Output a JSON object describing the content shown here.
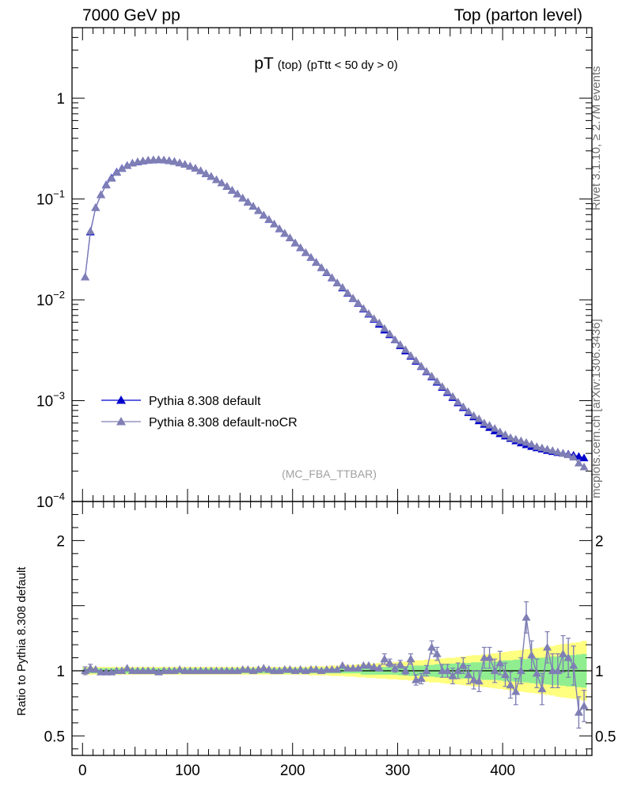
{
  "header": {
    "left": "7000 GeV pp",
    "right": "Top (parton level)"
  },
  "side_labels": {
    "top": "Rivet 3.1.10, ≥ 2.7M events",
    "bottom": "mcplots.cern.ch [arXiv:1306.3436]"
  },
  "colors": {
    "series_default": "#0000cc",
    "series_nocr": "#7f7fb5",
    "band_inner": "#90ee90",
    "band_outer": "#ffff80"
  },
  "chart_data": [
    {
      "type": "line",
      "title": "pT",
      "title_suffix": "(top)",
      "subtitle": "(pTtt < 50 dy > 0)",
      "watermark": "(MC_FBA_TTBAR)",
      "yscale": "log",
      "ylim": [
        0.0001,
        5
      ],
      "xlim": [
        -10,
        485
      ],
      "y_ticks": [
        {
          "value": 1,
          "label": "1",
          "exp": ""
        },
        {
          "value": 0.1,
          "label": "10",
          "exp": "−1"
        },
        {
          "value": 0.01,
          "label": "10",
          "exp": "−2"
        },
        {
          "value": 0.001,
          "label": "10",
          "exp": "−3"
        },
        {
          "value": 0.0001,
          "label": "10",
          "exp": "−4"
        }
      ],
      "legend": [
        {
          "name": "Pythia 8.308 default"
        },
        {
          "name": "Pythia 8.308 default-noCR"
        }
      ],
      "legend_position": "lower-left",
      "x": [
        2.5,
        7.5,
        12.5,
        17.5,
        22.5,
        27.5,
        32.5,
        37.5,
        42.5,
        47.5,
        52.5,
        57.5,
        62.5,
        67.5,
        72.5,
        77.5,
        82.5,
        87.5,
        92.5,
        97.5,
        102.5,
        107.5,
        112.5,
        117.5,
        122.5,
        127.5,
        132.5,
        137.5,
        142.5,
        147.5,
        152.5,
        157.5,
        162.5,
        167.5,
        172.5,
        177.5,
        182.5,
        187.5,
        192.5,
        197.5,
        202.5,
        207.5,
        212.5,
        217.5,
        222.5,
        227.5,
        232.5,
        237.5,
        242.5,
        247.5,
        252.5,
        257.5,
        262.5,
        267.5,
        272.5,
        277.5,
        282.5,
        287.5,
        292.5,
        297.5,
        302.5,
        307.5,
        312.5,
        317.5,
        322.5,
        327.5,
        332.5,
        337.5,
        342.5,
        347.5,
        352.5,
        357.5,
        362.5,
        367.5,
        372.5,
        377.5,
        382.5,
        387.5,
        392.5,
        397.5,
        402.5,
        407.5,
        412.5,
        417.5,
        422.5,
        427.5,
        432.5,
        437.5,
        442.5,
        447.5,
        452.5,
        457.5,
        462.5,
        467.5,
        472.5,
        477.5
      ],
      "series": [
        {
          "name": "Pythia 8.308 default",
          "values": [
            0.0168,
            0.047,
            0.082,
            0.11,
            0.138,
            0.162,
            0.185,
            0.201,
            0.215,
            0.226,
            0.233,
            0.238,
            0.242,
            0.244,
            0.245,
            0.243,
            0.24,
            0.235,
            0.228,
            0.22,
            0.211,
            0.201,
            0.19,
            0.178,
            0.167,
            0.155,
            0.144,
            0.133,
            0.122,
            0.112,
            0.102,
            0.093,
            0.0845,
            0.0765,
            0.069,
            0.0625,
            0.0563,
            0.0505,
            0.0455,
            0.041,
            0.0366,
            0.0328,
            0.0293,
            0.0263,
            0.0235,
            0.0208,
            0.0186,
            0.0165,
            0.0147,
            0.0131,
            0.0116,
            0.0103,
            0.0092,
            0.0081,
            0.0072,
            0.0064,
            0.0057,
            0.005,
            0.0045,
            0.004,
            0.0035,
            0.0031,
            0.00275,
            0.00245,
            0.00218,
            0.00193,
            0.00172,
            0.00152,
            0.00135,
            0.0012,
            0.00107,
            0.00095,
            0.00085,
            0.00076,
            0.00069,
            0.00063,
            0.00058,
            0.00054,
            0.0005,
            0.00047,
            0.000445,
            0.00042,
            0.000398,
            0.00038,
            0.000365,
            0.00035,
            0.00034,
            0.00033,
            0.00032,
            0.000312,
            0.000305,
            0.0003,
            0.000295,
            0.000288,
            0.00028,
            0.00027
          ]
        },
        {
          "name": "Pythia 8.308 default-noCR",
          "values": [
            0.0168,
            0.048,
            0.082,
            0.11,
            0.137,
            0.16,
            0.183,
            0.2,
            0.214,
            0.226,
            0.234,
            0.239,
            0.242,
            0.245,
            0.246,
            0.244,
            0.24,
            0.235,
            0.228,
            0.22,
            0.211,
            0.201,
            0.19,
            0.178,
            0.167,
            0.155,
            0.144,
            0.133,
            0.122,
            0.112,
            0.102,
            0.093,
            0.0847,
            0.0768,
            0.069,
            0.0627,
            0.0563,
            0.0507,
            0.0456,
            0.041,
            0.0367,
            0.0329,
            0.0294,
            0.0264,
            0.0234,
            0.0209,
            0.0187,
            0.0166,
            0.0147,
            0.0133,
            0.0117,
            0.0104,
            0.0093,
            0.0082,
            0.0073,
            0.0065,
            0.0059,
            0.0052,
            0.0046,
            0.004,
            0.0036,
            0.0032,
            0.0028,
            0.0025,
            0.0022,
            0.00195,
            0.00175,
            0.00155,
            0.00138,
            0.00123,
            0.0011,
            0.00097,
            0.00087,
            0.00078,
            0.00071,
            0.00066,
            0.0006,
            0.00057,
            0.00053,
            0.00049,
            0.00046,
            0.00043,
            0.000415,
            0.0004,
            0.000385,
            0.00037,
            0.00035,
            0.00034,
            0.00033,
            0.00032,
            0.00031,
            0.0003,
            0.00029,
            0.000275,
            0.00024,
            0.00022
          ]
        }
      ]
    },
    {
      "type": "line",
      "ylabel": "Ratio to Pythia 8.308 default",
      "ylim": [
        0.35,
        2.3
      ],
      "xlim": [
        -10,
        485
      ],
      "y_ticks": [
        2,
        1,
        0.5
      ],
      "x_ticks": [
        0,
        100,
        200,
        300,
        400
      ],
      "reference_line": 1,
      "x": [
        2.5,
        7.5,
        12.5,
        17.5,
        22.5,
        27.5,
        32.5,
        37.5,
        42.5,
        47.5,
        52.5,
        57.5,
        62.5,
        67.5,
        72.5,
        77.5,
        82.5,
        87.5,
        92.5,
        97.5,
        102.5,
        107.5,
        112.5,
        117.5,
        122.5,
        127.5,
        132.5,
        137.5,
        142.5,
        147.5,
        152.5,
        157.5,
        162.5,
        167.5,
        172.5,
        177.5,
        182.5,
        187.5,
        192.5,
        197.5,
        202.5,
        207.5,
        212.5,
        217.5,
        222.5,
        227.5,
        232.5,
        237.5,
        242.5,
        247.5,
        252.5,
        257.5,
        262.5,
        267.5,
        272.5,
        277.5,
        282.5,
        287.5,
        292.5,
        297.5,
        302.5,
        307.5,
        312.5,
        317.5,
        322.5,
        327.5,
        332.5,
        337.5,
        342.5,
        347.5,
        352.5,
        357.5,
        362.5,
        367.5,
        372.5,
        377.5,
        382.5,
        387.5,
        392.5,
        397.5,
        402.5,
        407.5,
        412.5,
        417.5,
        422.5,
        427.5,
        432.5,
        437.5,
        442.5,
        447.5,
        452.5,
        457.5,
        462.5,
        467.5,
        472.5,
        477.5
      ],
      "series": [
        {
          "name": "Pythia 8.308 default-noCR",
          "values": [
            1.0,
            1.02,
            1.01,
            0.99,
            0.99,
            0.99,
            1.0,
            1.0,
            1.02,
            1.0,
            1.0,
            1.0,
            1.0,
            1.0,
            0.99,
            1.0,
            1.0,
            1.0,
            1.01,
            1.0,
            1.0,
            1.0,
            1.0,
            1.0,
            1.0,
            1.0,
            1.0,
            1.0,
            1.0,
            1.0,
            1.01,
            1.01,
            1.0,
            1.01,
            1.02,
            1.01,
            1.0,
            1.0,
            1.01,
            1.01,
            1.0,
            1.01,
            1.0,
            1.01,
            1.01,
            1.0,
            1.01,
            1.01,
            1.01,
            1.04,
            1.02,
            1.02,
            1.02,
            1.04,
            1.04,
            1.03,
            1.02,
            1.09,
            1.06,
            1.02,
            1.05,
            1.0,
            1.09,
            0.93,
            0.94,
            1.0,
            1.18,
            1.13,
            1.0,
            1.0,
            0.96,
            1.0,
            1.04,
            0.97,
            0.93,
            0.92,
            1.1,
            1.1,
            1.0,
            1.06,
            0.97,
            0.89,
            0.84,
            1.0,
            1.41,
            1.12,
            0.98,
            0.86,
            1.18,
            1.0,
            1.0,
            1.13,
            1.1,
            1.04,
            0.68,
            0.73
          ],
          "errors": [
            0.03,
            0.03,
            0.02,
            0.02,
            0.02,
            0.02,
            0.02,
            0.02,
            0.02,
            0.02,
            0.02,
            0.02,
            0.02,
            0.02,
            0.02,
            0.02,
            0.02,
            0.02,
            0.02,
            0.02,
            0.02,
            0.02,
            0.02,
            0.02,
            0.02,
            0.02,
            0.02,
            0.02,
            0.02,
            0.02,
            0.02,
            0.02,
            0.02,
            0.02,
            0.02,
            0.02,
            0.02,
            0.02,
            0.02,
            0.02,
            0.02,
            0.02,
            0.02,
            0.02,
            0.02,
            0.02,
            0.02,
            0.02,
            0.02,
            0.02,
            0.02,
            0.02,
            0.02,
            0.02,
            0.02,
            0.02,
            0.02,
            0.04,
            0.03,
            0.03,
            0.03,
            0.03,
            0.04,
            0.04,
            0.04,
            0.04,
            0.05,
            0.05,
            0.05,
            0.05,
            0.06,
            0.06,
            0.06,
            0.07,
            0.07,
            0.08,
            0.08,
            0.08,
            0.09,
            0.09,
            0.09,
            0.1,
            0.1,
            0.1,
            0.12,
            0.11,
            0.11,
            0.12,
            0.12,
            0.13,
            0.13,
            0.14,
            0.15,
            0.15,
            0.12,
            0.12
          ]
        }
      ],
      "bands": {
        "inner": [
          0.02,
          0.02,
          0.02,
          0.02,
          0.02,
          0.02,
          0.02,
          0.02,
          0.02,
          0.02,
          0.02,
          0.02,
          0.02,
          0.02,
          0.02,
          0.02,
          0.02,
          0.02,
          0.02,
          0.02,
          0.02,
          0.02,
          0.02,
          0.02,
          0.02,
          0.02,
          0.02,
          0.02,
          0.02,
          0.02,
          0.02,
          0.02,
          0.02,
          0.02,
          0.02,
          0.02,
          0.02,
          0.02,
          0.02,
          0.02,
          0.02,
          0.02,
          0.02,
          0.02,
          0.02,
          0.02,
          0.02,
          0.02,
          0.02,
          0.02,
          0.02,
          0.02,
          0.02,
          0.03,
          0.03,
          0.03,
          0.03,
          0.03,
          0.03,
          0.03,
          0.035,
          0.035,
          0.04,
          0.04,
          0.04,
          0.045,
          0.045,
          0.05,
          0.05,
          0.05,
          0.055,
          0.055,
          0.06,
          0.06,
          0.065,
          0.065,
          0.07,
          0.07,
          0.07,
          0.075,
          0.08,
          0.08,
          0.085,
          0.09,
          0.09,
          0.095,
          0.1,
          0.1,
          0.105,
          0.11,
          0.11,
          0.115,
          0.12,
          0.12,
          0.125,
          0.13
        ],
        "outer": [
          0.03,
          0.03,
          0.03,
          0.03,
          0.03,
          0.03,
          0.03,
          0.03,
          0.03,
          0.03,
          0.03,
          0.03,
          0.03,
          0.03,
          0.03,
          0.03,
          0.03,
          0.03,
          0.03,
          0.03,
          0.03,
          0.03,
          0.03,
          0.03,
          0.03,
          0.03,
          0.03,
          0.03,
          0.03,
          0.03,
          0.03,
          0.03,
          0.03,
          0.03,
          0.03,
          0.03,
          0.03,
          0.03,
          0.03,
          0.03,
          0.03,
          0.03,
          0.03,
          0.035,
          0.035,
          0.035,
          0.035,
          0.04,
          0.04,
          0.04,
          0.045,
          0.045,
          0.05,
          0.05,
          0.055,
          0.055,
          0.06,
          0.06,
          0.065,
          0.065,
          0.07,
          0.07,
          0.075,
          0.08,
          0.08,
          0.085,
          0.09,
          0.09,
          0.095,
          0.1,
          0.1,
          0.105,
          0.11,
          0.115,
          0.12,
          0.12,
          0.125,
          0.13,
          0.135,
          0.14,
          0.145,
          0.15,
          0.155,
          0.16,
          0.165,
          0.17,
          0.175,
          0.18,
          0.185,
          0.19,
          0.2,
          0.205,
          0.21,
          0.215,
          0.22,
          0.23
        ]
      }
    }
  ]
}
